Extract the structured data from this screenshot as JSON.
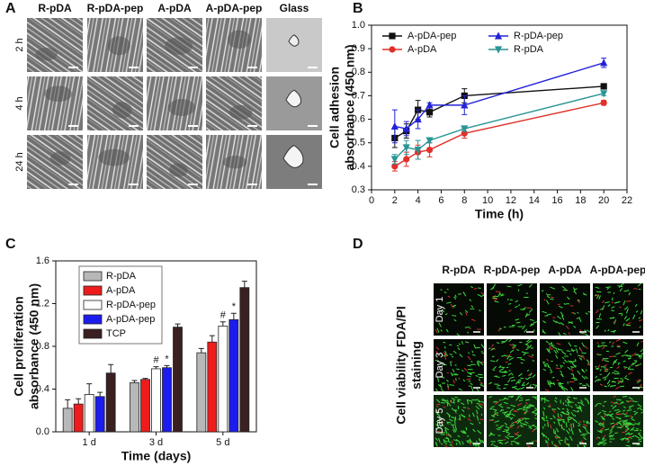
{
  "panels": {
    "A": {
      "letter": "A",
      "columns": [
        "R-pDA",
        "R-pDA-pep",
        "A-pDA",
        "A-pDA-pep",
        "Glass"
      ],
      "rows": [
        "2 h",
        "4 h",
        "24 h"
      ]
    },
    "B": {
      "letter": "B"
    },
    "C": {
      "letter": "C"
    },
    "D": {
      "letter": "D",
      "columns": [
        "R-pDA",
        "R-pDA-pep",
        "A-pDA",
        "A-pDA-pep"
      ],
      "rows": [
        "Day 1",
        "Day 3",
        "Day 5"
      ],
      "ylabel": [
        "Cell viability FDA/PI",
        "staining"
      ]
    }
  },
  "chart_data": [
    {
      "type": "line",
      "xlabel": "Time (h)",
      "ylabel": [
        "Cell adhesion",
        "absorbance (450 nm)"
      ],
      "xlim": [
        0,
        22
      ],
      "xticks": [
        0,
        2,
        4,
        6,
        8,
        10,
        12,
        14,
        16,
        18,
        20,
        22
      ],
      "ylim": [
        0.3,
        1
      ],
      "yticks": [
        0.3,
        0.4,
        0.5,
        0.6,
        0.7,
        0.8,
        0.9,
        {
          "value": 1,
          "label": "1.0"
        }
      ],
      "legend": "upper left",
      "x": [
        2,
        3,
        4,
        5,
        8,
        20
      ],
      "series": [
        {
          "name": "A-pDA-pep",
          "color": "#111111",
          "marker": "square",
          "values": [
            0.52,
            0.55,
            0.64,
            0.63,
            0.7,
            0.74
          ],
          "errors": [
            0.04,
            0.03,
            0.04,
            0.02,
            0.03,
            0.01
          ]
        },
        {
          "name": "R-pDA-pep",
          "color": "#2323d8",
          "marker": "triangle",
          "values": [
            0.57,
            0.56,
            0.6,
            0.66,
            0.66,
            0.84
          ],
          "errors": [
            0.07,
            0.03,
            0.04,
            0.01,
            0.04,
            0.02
          ]
        },
        {
          "name": "A-pDA",
          "color": "#e0302a",
          "marker": "circle",
          "values": [
            0.4,
            0.43,
            0.46,
            0.47,
            0.54,
            0.67
          ],
          "errors": [
            0.02,
            0.03,
            0.03,
            0.03,
            0.02,
            0.01
          ]
        },
        {
          "name": "R-pDA",
          "color": "#2a9494",
          "marker": "triangle-down",
          "values": [
            0.43,
            0.48,
            0.47,
            0.51,
            0.56,
            0.71
          ],
          "errors": [
            0.02,
            0.03,
            0.04,
            0.01,
            0.01,
            0.01
          ]
        }
      ]
    },
    {
      "type": "bar",
      "xlabel": "Time (days)",
      "ylabel": [
        "Cell proliferation",
        "absorbance (450 nm)"
      ],
      "ylim": [
        0,
        1.6
      ],
      "yticks": [
        {
          "value": 0,
          "label": "0.0"
        },
        0.4,
        0.8,
        1.2,
        1.6
      ],
      "legend": "upper left",
      "categories": [
        "1 d",
        "3 d",
        "5 d"
      ],
      "series": [
        {
          "name": "R-pDA",
          "color": "#b8b8b8",
          "values": [
            0.22,
            0.46,
            0.74
          ],
          "errors": [
            0.08,
            0.02,
            0.04
          ]
        },
        {
          "name": "A-pDA",
          "color": "#ee1c1c",
          "values": [
            0.26,
            0.49,
            0.84
          ],
          "errors": [
            0.05,
            0.01,
            0.06
          ]
        },
        {
          "name": "R-pDA-pep",
          "color": "#ffffff",
          "values": [
            0.35,
            0.59,
            0.99
          ],
          "errors": [
            0.1,
            0.02,
            0.04
          ],
          "annotations": [
            null,
            "#",
            "#"
          ]
        },
        {
          "name": "A-pDA-pep",
          "color": "#1c1cee",
          "values": [
            0.33,
            0.6,
            1.05
          ],
          "errors": [
            0.04,
            0.02,
            0.06
          ],
          "annotations": [
            null,
            "*",
            "*"
          ]
        },
        {
          "name": "TCP",
          "color": "#3a2020",
          "values": [
            0.55,
            0.98,
            1.35
          ],
          "errors": [
            0.08,
            0.03,
            0.06
          ]
        }
      ]
    }
  ]
}
